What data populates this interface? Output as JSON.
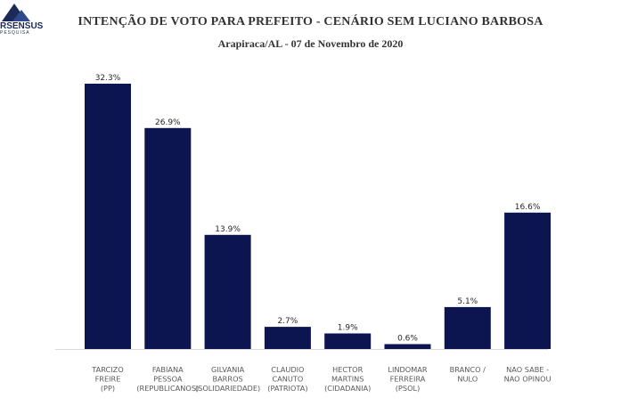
{
  "logo": {
    "word": "RSENSUS",
    "sub": "PESQUISA"
  },
  "chart_data": {
    "type": "bar",
    "title": "INTENÇÃO DE VOTO PARA PREFEITO - CENÁRIO SEM LUCIANO BARBOSA",
    "subtitle": "Arapiraca/AL - 07 de Novembro de 2020",
    "categories": [
      [
        "TARCIZO",
        "FREIRE",
        "(PP)"
      ],
      [
        "FABIANA",
        "PESSOA",
        "(REPUBLICANOS)"
      ],
      [
        "GILVANIA",
        "BARROS",
        "(SOLIDARIEDADE)"
      ],
      [
        "CLAUDIO",
        "CANUTO",
        "(PATRIOTA)"
      ],
      [
        "HECTOR",
        "MARTINS",
        "(CIDADANIA)"
      ],
      [
        "LINDOMAR",
        "FERREIRA",
        "(PSOL)"
      ],
      [
        "BRANCO /",
        "NULO"
      ],
      [
        "NAO SABE  -",
        "NAO OPINOU"
      ]
    ],
    "values": [
      32.3,
      26.9,
      13.9,
      2.7,
      1.9,
      0.6,
      5.1,
      16.6
    ],
    "value_labels": [
      "32.3%",
      "26.9%",
      "13.9%",
      "2.7%",
      "1.9%",
      "0.6%",
      "5.1%",
      "16.6%"
    ],
    "bar_color": "#0d1550",
    "axis_color": "#d9d9d9",
    "ylim": [
      0,
      32.3
    ],
    "grid": false
  }
}
